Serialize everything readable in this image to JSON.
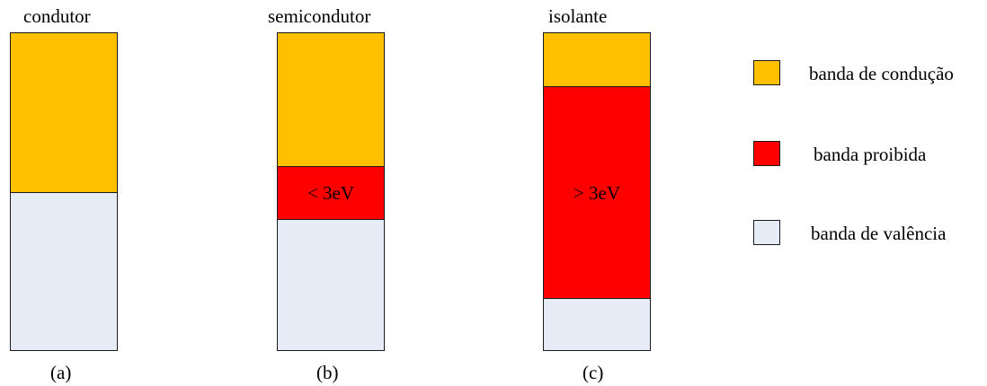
{
  "colors": {
    "conduction": "#FFC000",
    "forbidden": "#FF0000",
    "valence": "#E6ECF6"
  },
  "columns": [
    {
      "title": "condutor",
      "caption": "(a)",
      "bands": [
        {
          "type": "conduction",
          "label": ""
        },
        {
          "type": "valence",
          "label": ""
        }
      ]
    },
    {
      "title": "semicondutor",
      "caption": "(b)",
      "bands": [
        {
          "type": "conduction",
          "label": ""
        },
        {
          "type": "forbidden",
          "label": "< 3eV"
        },
        {
          "type": "valence",
          "label": ""
        }
      ]
    },
    {
      "title": "isolante",
      "caption": "(c)",
      "bands": [
        {
          "type": "conduction",
          "label": ""
        },
        {
          "type": "forbidden",
          "label": "> 3eV"
        },
        {
          "type": "valence",
          "label": ""
        }
      ]
    }
  ],
  "legend": [
    {
      "type": "conduction",
      "label": "banda de condução"
    },
    {
      "type": "forbidden",
      "label": "banda proibida"
    },
    {
      "type": "valence",
      "label": "banda de valência"
    }
  ]
}
